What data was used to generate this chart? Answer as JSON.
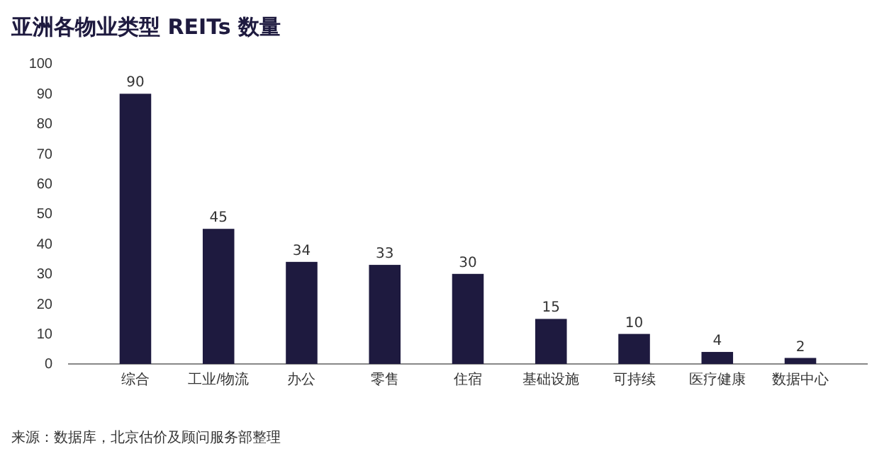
{
  "chart_data": {
    "type": "bar",
    "title": "亚洲各物业类型 REITs 数量",
    "categories": [
      "综合",
      "工业/物流",
      "办公",
      "零售",
      "住宿",
      "基础设施",
      "可持续",
      "医疗健康",
      "数据中心"
    ],
    "values": [
      90,
      45,
      34,
      33,
      30,
      15,
      10,
      4,
      2
    ],
    "color": "#1e1a3f",
    "ylim": [
      0,
      100
    ],
    "yticks": [
      0,
      10,
      20,
      30,
      40,
      50,
      60,
      70,
      80,
      90,
      100
    ],
    "grid": false,
    "data_labels": true,
    "annotations": [
      "来源：数据库，北京估价及顾问服务部整理"
    ]
  }
}
